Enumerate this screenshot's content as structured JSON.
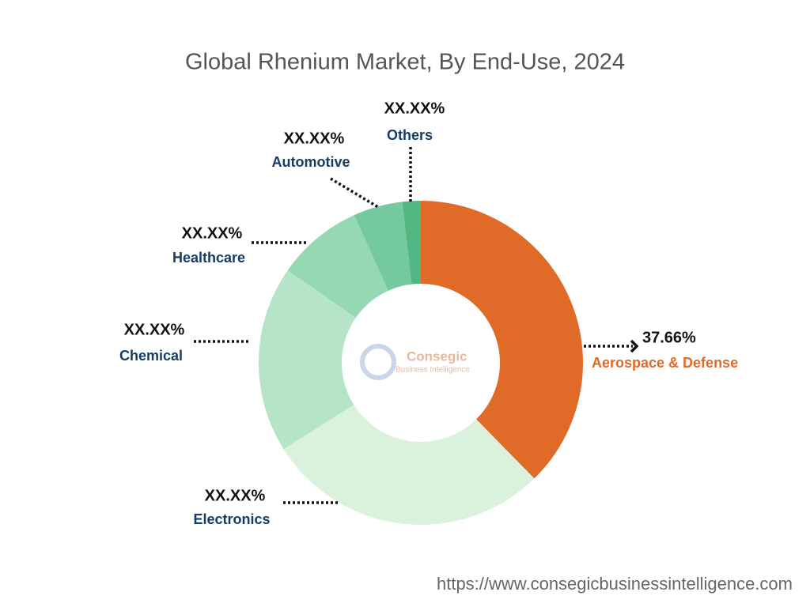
{
  "chart_data": {
    "type": "donut",
    "title": "Global Rhenium Market, By End-Use, 2024",
    "categories": [
      "Aerospace & Defense",
      "Electronics",
      "Chemical",
      "Healthcare",
      "Automotive",
      "Others"
    ],
    "values": [
      37.66,
      28.4,
      18.6,
      8.6,
      4.9,
      1.84
    ],
    "value_labels": [
      "37.66%",
      "XX.XX%",
      "XX.XX%",
      "XX.XX%",
      "XX.XX%",
      "XX.XX%"
    ],
    "colors": [
      "#e06a28",
      "#daf1dc",
      "#b5e4c7",
      "#95d8b2",
      "#75c99f",
      "#52b883"
    ],
    "watermark": [
      "Consegic",
      "Business Intelligence"
    ],
    "source": "https://www.consegicbusinessintelligence.com"
  }
}
